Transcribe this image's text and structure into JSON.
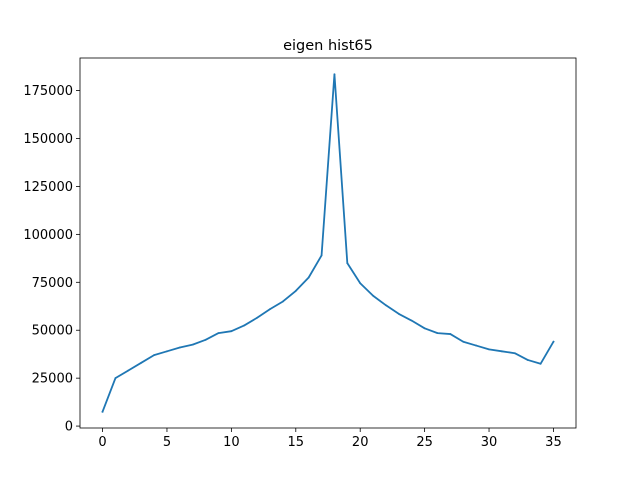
{
  "chart_data": {
    "type": "line",
    "title": "eigen hist65",
    "xlabel": "",
    "ylabel": "",
    "xlim": [
      -1.75,
      36.75
    ],
    "ylim": [
      -1000,
      192000
    ],
    "x_ticks": [
      0,
      5,
      10,
      15,
      20,
      25,
      30,
      35
    ],
    "y_ticks": [
      0,
      25000,
      50000,
      75000,
      100000,
      125000,
      150000,
      175000
    ],
    "grid": false,
    "legend": "none",
    "series": [
      {
        "color": "#1f77b4",
        "x": [
          0,
          1,
          2,
          3,
          4,
          5,
          6,
          7,
          8,
          9,
          10,
          11,
          12,
          13,
          14,
          15,
          16,
          17,
          18,
          19,
          20,
          21,
          22,
          23,
          24,
          25,
          26,
          27,
          28,
          29,
          30,
          31,
          32,
          33,
          34,
          35
        ],
        "values": [
          7500,
          25000,
          29000,
          33000,
          37000,
          39000,
          41000,
          42500,
          45000,
          48500,
          49500,
          52500,
          56500,
          61000,
          65000,
          70500,
          77500,
          89000,
          183500,
          85000,
          74500,
          68000,
          63000,
          58500,
          55000,
          51000,
          48500,
          48000,
          44000,
          42000,
          40000,
          39000,
          38000,
          34500,
          32500,
          44000
        ]
      }
    ]
  }
}
